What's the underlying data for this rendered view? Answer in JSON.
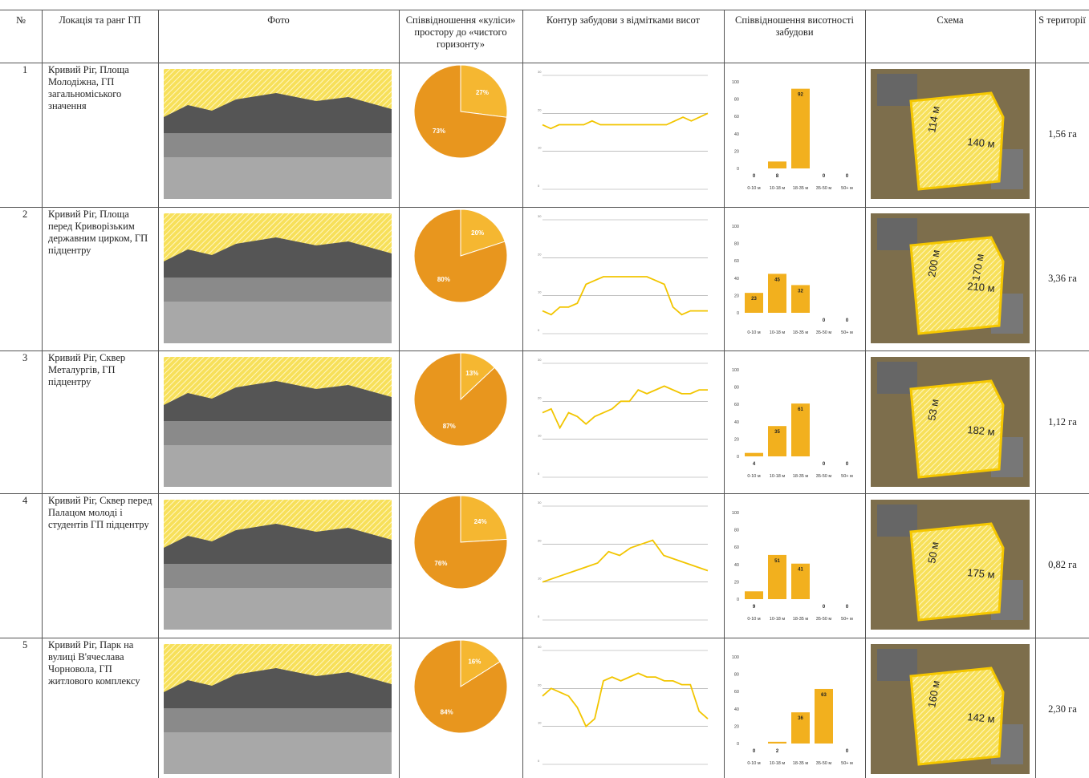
{
  "table": {
    "headers": [
      "№",
      "Локація та ранг ГП",
      "Фото",
      "Співвідношення «куліси» простору до «чистого горизонту»",
      "Контур забудови з відмітками висот",
      "Співвідношення висотності забудови",
      "Схема",
      "S території"
    ],
    "rows": [
      {
        "number": "1",
        "location": "Кривий Ріг, Площа Молодіжна, ГП загальноміського значення",
        "pie": {
          "type": "pie",
          "values": [
            27,
            73
          ],
          "value_labels": [
            "27%",
            "73%"
          ],
          "colors": [
            "#f5b731",
            "#e8961e"
          ]
        },
        "contour": {
          "type": "line",
          "values": [
            17,
            16,
            17,
            17,
            17,
            17,
            18,
            17,
            17,
            17,
            17,
            17,
            17,
            17,
            17,
            17,
            18,
            19,
            18,
            19,
            20
          ],
          "ylim": [
            0,
            30
          ],
          "yticks": [
            0,
            10,
            20,
            30
          ],
          "color": "#f2c500"
        },
        "heights": {
          "type": "bar",
          "categories": [
            "0-10 м",
            "10-18 м",
            "18-35 м",
            "35-50 м",
            "50+ м"
          ],
          "values": [
            0,
            8,
            92,
            0,
            0
          ],
          "ylim": [
            0,
            100
          ],
          "yticks": [
            0,
            20,
            40,
            60,
            80,
            100
          ],
          "color": "#f2b01e"
        },
        "scheme_labels": [
          "114 м",
          "140 м"
        ],
        "area": "1,56 га"
      },
      {
        "number": "2",
        "location": "Кривий Ріг, Площа перед Криворізьким державним цирком, ГП підцентру",
        "pie": {
          "type": "pie",
          "values": [
            20,
            80
          ],
          "value_labels": [
            "20%",
            "80%"
          ],
          "colors": [
            "#f5b731",
            "#e8961e"
          ]
        },
        "contour": {
          "type": "line",
          "values": [
            6,
            5,
            7,
            7,
            8,
            13,
            14,
            15,
            15,
            15,
            15,
            15,
            15,
            14,
            13,
            7,
            5,
            6,
            6,
            6
          ],
          "ylim": [
            0,
            30
          ],
          "yticks": [
            0,
            10,
            20,
            30
          ],
          "color": "#f2c500"
        },
        "heights": {
          "type": "bar",
          "categories": [
            "0-10 м",
            "10-18 м",
            "18-35 м",
            "35-50 м",
            "50+ м"
          ],
          "values": [
            23,
            45,
            32,
            0,
            0
          ],
          "ylim": [
            0,
            100
          ],
          "yticks": [
            0,
            20,
            40,
            60,
            80,
            100
          ],
          "color": "#f2b01e"
        },
        "scheme_labels": [
          "200 м",
          "210 м",
          "170 м"
        ],
        "area": "3,36 га"
      },
      {
        "number": "3",
        "location": "Кривий Ріг, Сквер Металургів, ГП підцентру",
        "pie": {
          "type": "pie",
          "values": [
            13,
            87
          ],
          "value_labels": [
            "13%",
            "87%"
          ],
          "colors": [
            "#f5b731",
            "#e8961e"
          ]
        },
        "contour": {
          "type": "line",
          "values": [
            17,
            18,
            13,
            17,
            16,
            14,
            16,
            17,
            18,
            20,
            20,
            23,
            22,
            23,
            24,
            23,
            22,
            22,
            23,
            23
          ],
          "ylim": [
            0,
            30
          ],
          "yticks": [
            0,
            10,
            20,
            30
          ],
          "color": "#f2c500"
        },
        "heights": {
          "type": "bar",
          "categories": [
            "0-10 м",
            "10-18 м",
            "18-35 м",
            "35-50 м",
            "50+ м"
          ],
          "values": [
            4,
            35,
            61,
            0,
            0
          ],
          "ylim": [
            0,
            100
          ],
          "yticks": [
            0,
            20,
            40,
            60,
            80,
            100
          ],
          "color": "#f2b01e"
        },
        "scheme_labels": [
          "53 м",
          "182 м"
        ],
        "area": "1,12 га"
      },
      {
        "number": "4",
        "location": "Кривий Ріг, Сквер перед Палацом молоді і студентів ГП підцентру",
        "pie": {
          "type": "pie",
          "values": [
            24,
            76
          ],
          "value_labels": [
            "24%",
            "76%"
          ],
          "colors": [
            "#f5b731",
            "#e8961e"
          ]
        },
        "contour": {
          "type": "line",
          "values": [
            10,
            11,
            12,
            13,
            14,
            15,
            18,
            17,
            19,
            20,
            21,
            17,
            16,
            15,
            14,
            13
          ],
          "ylim": [
            0,
            30
          ],
          "yticks": [
            0,
            10,
            20,
            30
          ],
          "color": "#f2c500"
        },
        "heights": {
          "type": "bar",
          "categories": [
            "0-10 м",
            "10-18 м",
            "18-35 м",
            "35-50 м",
            "50+ м"
          ],
          "values": [
            9,
            51,
            41,
            0,
            0
          ],
          "ylim": [
            0,
            100
          ],
          "yticks": [
            0,
            20,
            40,
            60,
            80,
            100
          ],
          "color": "#f2b01e"
        },
        "scheme_labels": [
          "50 м",
          "175 м"
        ],
        "area": "0,82 га"
      },
      {
        "number": "5",
        "location": "Кривий Ріг, Парк на вулиці В'ячеслава Чорновола, ГП житлового комплексу",
        "pie": {
          "type": "pie",
          "values": [
            16,
            84
          ],
          "value_labels": [
            "16%",
            "84%"
          ],
          "colors": [
            "#f5b731",
            "#e8961e"
          ]
        },
        "contour": {
          "type": "line",
          "values": [
            18,
            20,
            19,
            18,
            15,
            10,
            12,
            22,
            23,
            22,
            23,
            24,
            23,
            23,
            22,
            22,
            21,
            21,
            14,
            12
          ],
          "ylim": [
            0,
            30
          ],
          "yticks": [
            0,
            10,
            20,
            30
          ],
          "color": "#f2c500"
        },
        "heights": {
          "type": "bar",
          "categories": [
            "0-10 м",
            "10-18 м",
            "18-35 м",
            "35-50 м",
            "50+ м"
          ],
          "values": [
            0,
            2,
            36,
            63,
            0
          ],
          "ylim": [
            0,
            100
          ],
          "yticks": [
            0,
            20,
            40,
            60,
            80,
            100
          ],
          "color": "#f2b01e"
        },
        "scheme_labels": [
          "160 м",
          "142 м"
        ],
        "area": "2,30 га"
      }
    ]
  }
}
